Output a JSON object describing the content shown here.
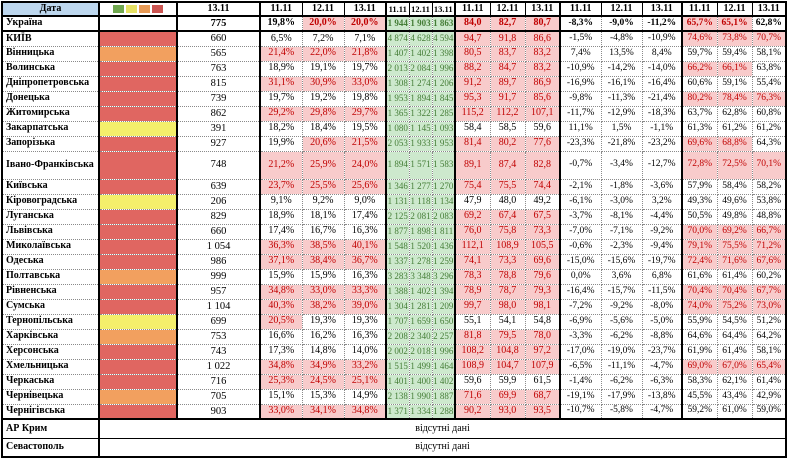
{
  "header": {
    "corner": "Дата",
    "groups": [
      [
        "13.11"
      ],
      [
        "11.11",
        "12.11",
        "13.11"
      ],
      [
        "11.11",
        "12.11",
        "13.11"
      ],
      [
        "11.11",
        "12.11",
        "13.11"
      ],
      [
        "11.11",
        "12.11",
        "13.11"
      ],
      [
        "11.11",
        "12.11",
        "13.11"
      ]
    ]
  },
  "legend_squares": [
    {
      "name": "green",
      "color": "#70a84f"
    },
    {
      "name": "yellow",
      "color": "#e6e163"
    },
    {
      "name": "orange",
      "color": "#e89a55"
    },
    {
      "name": "red",
      "color": "#cc5552"
    }
  ],
  "thresholds": {
    "pct_pink_min": 20,
    "load_pink_min": 65,
    "occ_pink_min": 65
  },
  "colors": {
    "pink_bg": "#f8cbcb",
    "pink_text": "#c00000",
    "green_bg": "#cde9cd",
    "green_text": "#447d36",
    "ind_red": "#e06661",
    "ind_orange": "#f2a05f",
    "ind_yellow": "#f4ef6b",
    "header_blue": "#bdd7ee"
  },
  "no_data_label": "відсутні дані",
  "rows": [
    {
      "region": "Україна",
      "indicator": "none",
      "bold": true,
      "num": "775",
      "pct": [
        "19,8%",
        "20,0%",
        "20,0%"
      ],
      "hosp": [
        "1 944",
        "1 903",
        "1 863"
      ],
      "load": [
        "84,0",
        "82,7",
        "80,7"
      ],
      "delta": [
        "-8,3%",
        "-9,0%",
        "-11,2%"
      ],
      "occ": [
        "65,7%",
        "65,1%",
        "62,8%"
      ]
    },
    {
      "region": "КИЇВ",
      "indicator": "red",
      "num": "660",
      "pct": [
        "6,5%",
        "7,2%",
        "7,1%"
      ],
      "hosp": [
        "4 874",
        "4 628",
        "4 594"
      ],
      "load": [
        "94,7",
        "91,8",
        "86,6"
      ],
      "delta": [
        "-1,5%",
        "-4,8%",
        "-10,9%"
      ],
      "occ": [
        "74,6%",
        "73,8%",
        "70,7%"
      ]
    },
    {
      "region": "Вінницька",
      "indicator": "orange",
      "num": "565",
      "pct": [
        "21,4%",
        "22,0%",
        "21,8%"
      ],
      "hosp": [
        "1 407",
        "1 402",
        "1 398"
      ],
      "load": [
        "80,5",
        "83,7",
        "83,2"
      ],
      "delta": [
        "7,4%",
        "13,5%",
        "8,4%"
      ],
      "occ": [
        "59,7%",
        "59,4%",
        "58,1%"
      ]
    },
    {
      "region": "Волинська",
      "indicator": "red",
      "num": "763",
      "pct": [
        "18,9%",
        "19,1%",
        "19,7%"
      ],
      "hosp": [
        "2 013",
        "2 084",
        "1 996"
      ],
      "load": [
        "88,2",
        "84,7",
        "83,2"
      ],
      "delta": [
        "-10,9%",
        "-14,2%",
        "-14,0%"
      ],
      "occ": [
        "66,2%",
        "66,1%",
        "63,8%"
      ]
    },
    {
      "region": "Дніпропетровська",
      "indicator": "red",
      "num": "815",
      "pct": [
        "31,1%",
        "30,9%",
        "33,0%"
      ],
      "hosp": [
        "1 308",
        "1 274",
        "1 206"
      ],
      "load": [
        "91,2",
        "89,7",
        "86,9"
      ],
      "delta": [
        "-16,9%",
        "-16,1%",
        "-16,4%"
      ],
      "occ": [
        "60,6%",
        "59,1%",
        "55,4%"
      ]
    },
    {
      "region": "Донецька",
      "indicator": "red",
      "num": "739",
      "pct": [
        "19,7%",
        "19,2%",
        "19,8%"
      ],
      "hosp": [
        "1 953",
        "1 894",
        "1 845"
      ],
      "load": [
        "95,3",
        "91,7",
        "85,6"
      ],
      "delta": [
        "-9,8%",
        "-11,3%",
        "-21,4%"
      ],
      "occ": [
        "80,2%",
        "78,4%",
        "76,3%"
      ]
    },
    {
      "region": "Житомирська",
      "indicator": "red",
      "num": "862",
      "pct": [
        "29,2%",
        "29,8%",
        "29,7%"
      ],
      "hosp": [
        "1 365",
        "1 322",
        "1 285"
      ],
      "load": [
        "115,2",
        "112,2",
        "107,1"
      ],
      "delta": [
        "-11,7%",
        "-12,9%",
        "-18,3%"
      ],
      "occ": [
        "63,7%",
        "62,8%",
        "60,8%"
      ]
    },
    {
      "region": "Закарпатська",
      "indicator": "yellow",
      "num": "391",
      "pct": [
        "18,2%",
        "18,4%",
        "19,5%"
      ],
      "hosp": [
        "1 080",
        "1 145",
        "1 093"
      ],
      "load": [
        "58,4",
        "58,5",
        "59,6"
      ],
      "delta": [
        "11,1%",
        "1,5%",
        "-1,1%"
      ],
      "occ": [
        "61,3%",
        "61,2%",
        "61,2%"
      ]
    },
    {
      "region": "Запорізька",
      "indicator": "red",
      "num": "927",
      "pct": [
        "19,9%",
        "20,6%",
        "21,5%"
      ],
      "hosp": [
        "2 053",
        "1 933",
        "1 953"
      ],
      "load": [
        "81,4",
        "80,2",
        "77,6"
      ],
      "delta": [
        "-23,3%",
        "-21,8%",
        "-23,2%"
      ],
      "occ": [
        "69,6%",
        "68,8%",
        "64,3%"
      ]
    },
    {
      "region": "Івано-Франківська",
      "indicator": "red",
      "tall": true,
      "num": "748",
      "pct": [
        "21,2%",
        "25,9%",
        "24,0%"
      ],
      "hosp": [
        "1 894",
        "1 571",
        "1 583"
      ],
      "load": [
        "89,1",
        "87,4",
        "82,8"
      ],
      "delta": [
        "-0,7%",
        "-3,4%",
        "-12,7%"
      ],
      "occ": [
        "72,8%",
        "72,5%",
        "70,1%"
      ]
    },
    {
      "region": "Київська",
      "indicator": "red",
      "num": "639",
      "pct": [
        "23,7%",
        "25,5%",
        "25,6%"
      ],
      "hosp": [
        "1 346",
        "1 277",
        "1 270"
      ],
      "load": [
        "75,4",
        "75,5",
        "74,4"
      ],
      "delta": [
        "-2,1%",
        "-1,8%",
        "-3,6%"
      ],
      "occ": [
        "57,9%",
        "58,4%",
        "58,2%"
      ]
    },
    {
      "region": "Кіровоградська",
      "indicator": "yellow",
      "num": "206",
      "pct": [
        "9,1%",
        "9,2%",
        "9,0%"
      ],
      "hosp": [
        "1 131",
        "1 118",
        "1 134"
      ],
      "load": [
        "47,9",
        "48,0",
        "49,2"
      ],
      "delta": [
        "-6,1%",
        "-3,0%",
        "3,2%"
      ],
      "occ": [
        "49,3%",
        "49,6%",
        "53,8%"
      ]
    },
    {
      "region": "Луганська",
      "indicator": "red",
      "num": "829",
      "pct": [
        "18,9%",
        "18,1%",
        "17,4%"
      ],
      "hosp": [
        "2 125",
        "2 081",
        "2 083"
      ],
      "load": [
        "69,2",
        "67,4",
        "67,5"
      ],
      "delta": [
        "-3,7%",
        "-8,1%",
        "-4,4%"
      ],
      "occ": [
        "50,5%",
        "49,8%",
        "48,8%"
      ]
    },
    {
      "region": "Львівська",
      "indicator": "red",
      "num": "660",
      "pct": [
        "17,4%",
        "16,7%",
        "16,3%"
      ],
      "hosp": [
        "1 877",
        "1 898",
        "1 811"
      ],
      "load": [
        "76,0",
        "75,8",
        "73,3"
      ],
      "delta": [
        "-7,0%",
        "-7,1%",
        "-9,2%"
      ],
      "occ": [
        "70,0%",
        "69,2%",
        "66,7%"
      ]
    },
    {
      "region": "Миколаївська",
      "indicator": "red",
      "num": "1 054",
      "pct": [
        "36,3%",
        "38,5%",
        "40,1%"
      ],
      "hosp": [
        "1 548",
        "1 520",
        "1 436"
      ],
      "load": [
        "112,1",
        "108,9",
        "105,5"
      ],
      "delta": [
        "-0,6%",
        "-2,3%",
        "-9,4%"
      ],
      "occ": [
        "79,1%",
        "75,5%",
        "71,2%"
      ]
    },
    {
      "region": "Одеська",
      "indicator": "red",
      "num": "986",
      "pct": [
        "37,1%",
        "38,4%",
        "36,7%"
      ],
      "hosp": [
        "1 337",
        "1 278",
        "1 259"
      ],
      "load": [
        "74,1",
        "73,3",
        "69,6"
      ],
      "delta": [
        "-15,0%",
        "-15,6%",
        "-19,7%"
      ],
      "occ": [
        "72,4%",
        "71,6%",
        "67,6%"
      ]
    },
    {
      "region": "Полтавська",
      "indicator": "orange",
      "num": "999",
      "pct": [
        "15,9%",
        "15,9%",
        "16,3%"
      ],
      "hosp": [
        "3 283",
        "3 348",
        "3 296"
      ],
      "load": [
        "78,3",
        "78,8",
        "79,6"
      ],
      "delta": [
        "0,0%",
        "3,6%",
        "6,8%"
      ],
      "occ": [
        "61,6%",
        "61,4%",
        "60,2%"
      ]
    },
    {
      "region": "Рівненська",
      "indicator": "red",
      "num": "957",
      "pct": [
        "34,8%",
        "33,0%",
        "33,3%"
      ],
      "hosp": [
        "1 388",
        "1 402",
        "1 394"
      ],
      "load": [
        "78,9",
        "78,7",
        "79,3"
      ],
      "delta": [
        "-16,4%",
        "-15,7%",
        "-11,5%"
      ],
      "occ": [
        "70,4%",
        "70,4%",
        "67,7%"
      ]
    },
    {
      "region": "Сумська",
      "indicator": "red",
      "num": "1 104",
      "pct": [
        "40,3%",
        "38,2%",
        "39,0%"
      ],
      "hosp": [
        "1 304",
        "1 281",
        "1 209"
      ],
      "load": [
        "99,7",
        "98,0",
        "98,1"
      ],
      "delta": [
        "-7,2%",
        "-9,2%",
        "-8,0%"
      ],
      "occ": [
        "74,0%",
        "75,2%",
        "73,0%"
      ]
    },
    {
      "region": "Тернопільська",
      "indicator": "yellow",
      "num": "699",
      "pct": [
        "20,5%",
        "19,3%",
        "19,3%"
      ],
      "hosp": [
        "1 707",
        "1 659",
        "1 650"
      ],
      "load": [
        "55,1",
        "54,1",
        "54,8"
      ],
      "delta": [
        "-6,9%",
        "-5,6%",
        "-5,0%"
      ],
      "occ": [
        "55,9%",
        "54,5%",
        "51,2%"
      ]
    },
    {
      "region": "Харківська",
      "indicator": "orange",
      "num": "753",
      "pct": [
        "16,6%",
        "16,2%",
        "16,3%"
      ],
      "hosp": [
        "2 208",
        "2 340",
        "2 257"
      ],
      "load": [
        "81,8",
        "79,5",
        "78,0"
      ],
      "delta": [
        "-3,3%",
        "-6,2%",
        "-8,8%"
      ],
      "occ": [
        "64,6%",
        "64,4%",
        "64,2%"
      ]
    },
    {
      "region": "Херсонська",
      "indicator": "red",
      "num": "743",
      "pct": [
        "17,3%",
        "14,8%",
        "14,0%"
      ],
      "hosp": [
        "2 002",
        "2 018",
        "1 996"
      ],
      "load": [
        "108,2",
        "104,8",
        "97,2"
      ],
      "delta": [
        "-17,0%",
        "-19,0%",
        "-23,7%"
      ],
      "occ": [
        "61,9%",
        "61,4%",
        "58,1%"
      ]
    },
    {
      "region": "Хмельницька",
      "indicator": "red",
      "num": "1 022",
      "pct": [
        "34,8%",
        "34,9%",
        "33,2%"
      ],
      "hosp": [
        "1 515",
        "1 499",
        "1 464"
      ],
      "load": [
        "108,9",
        "104,7",
        "107,9"
      ],
      "delta": [
        "-6,5%",
        "-11,1%",
        "-4,7%"
      ],
      "occ": [
        "69,0%",
        "67,0%",
        "65,4%"
      ]
    },
    {
      "region": "Черкаська",
      "indicator": "red",
      "num": "716",
      "pct": [
        "25,3%",
        "24,5%",
        "25,1%"
      ],
      "hosp": [
        "1 401",
        "1 400",
        "1 402"
      ],
      "load": [
        "59,6",
        "59,9",
        "61,5"
      ],
      "delta": [
        "-1,4%",
        "-6,2%",
        "-6,3%"
      ],
      "occ": [
        "58,3%",
        "62,1%",
        "61,4%"
      ]
    },
    {
      "region": "Чернівецька",
      "indicator": "orange",
      "num": "705",
      "pct": [
        "15,1%",
        "15,3%",
        "14,9%"
      ],
      "hosp": [
        "2 138",
        "1 990",
        "1 887"
      ],
      "load": [
        "71,6",
        "69,9",
        "68,7"
      ],
      "delta": [
        "-19,1%",
        "-17,9%",
        "-13,8%"
      ],
      "occ": [
        "45,5%",
        "43,4%",
        "42,9%"
      ]
    },
    {
      "region": "Чернігівська",
      "indicator": "red",
      "num": "903",
      "pct": [
        "33,0%",
        "34,1%",
        "34,8%"
      ],
      "hosp": [
        "1 371",
        "1 334",
        "1 288"
      ],
      "load": [
        "90,2",
        "93,0",
        "93,5"
      ],
      "delta": [
        "-10,7%",
        "-5,8%",
        "-4,7%"
      ],
      "occ": [
        "59,2%",
        "61,0%",
        "59,0%"
      ]
    },
    {
      "region": "АР Крим",
      "indicator": "none",
      "no_data": true
    },
    {
      "region": "Севастополь",
      "indicator": "none",
      "no_data": true
    }
  ]
}
